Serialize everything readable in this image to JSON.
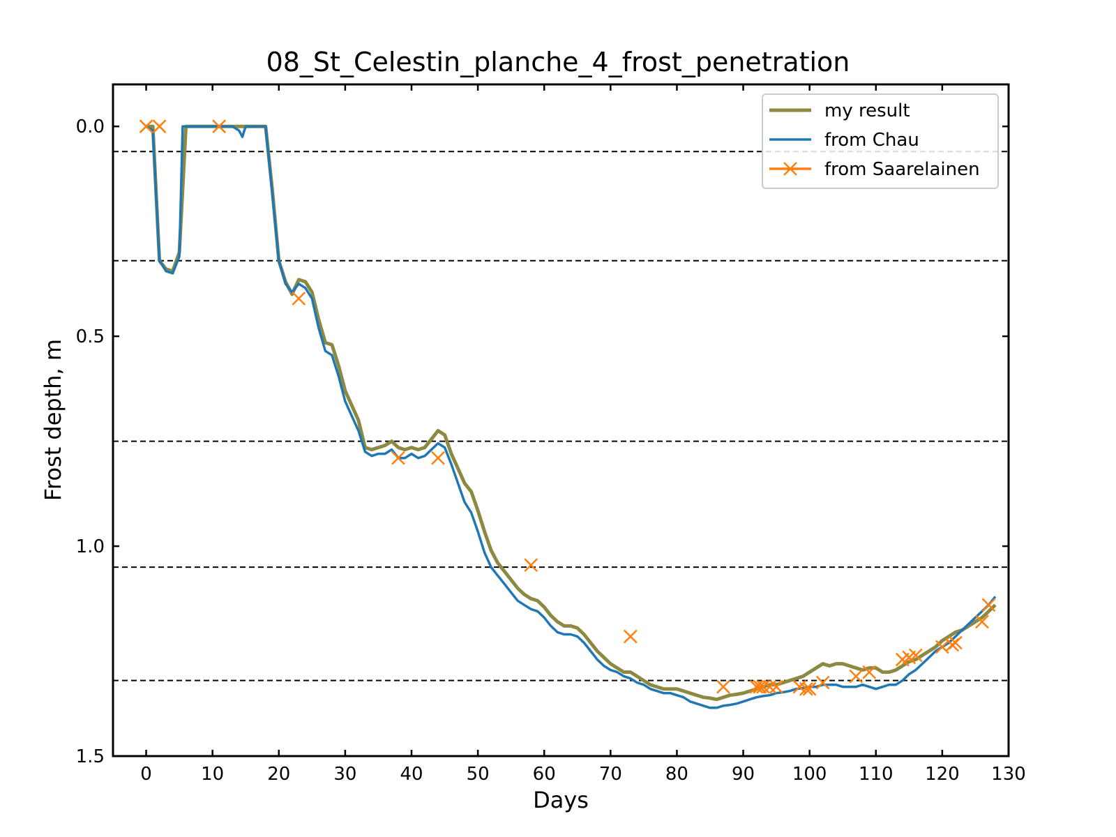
{
  "chart_data": {
    "type": "line",
    "title": "08_St_Celestin_planche_4_frost_penetration",
    "xlabel": "Days",
    "ylabel": "Frost depth, m",
    "xlim": [
      -5,
      130
    ],
    "ylim": [
      1.5,
      -0.1
    ],
    "y_inverted": true,
    "xticks": [
      0,
      10,
      20,
      30,
      40,
      50,
      60,
      70,
      80,
      90,
      100,
      110,
      120,
      130
    ],
    "yticks": [
      0.0,
      0.5,
      1.0,
      1.5
    ],
    "xtick_labels": [
      "0",
      "10",
      "20",
      "30",
      "40",
      "50",
      "60",
      "70",
      "80",
      "90",
      "100",
      "110",
      "120",
      "130"
    ],
    "ytick_labels": [
      "0.0",
      "0.5",
      "1.0",
      "1.5"
    ],
    "layer_boundaries": [
      0.06,
      0.32,
      0.75,
      1.05,
      1.32
    ],
    "legend_position": "upper right",
    "grid": false,
    "series": [
      {
        "name": "my result",
        "color": "#8c8a42",
        "style": "line",
        "x": [
          0,
          1,
          2,
          3,
          4,
          5,
          6,
          7,
          8,
          9,
          10,
          11,
          12,
          13,
          14,
          15,
          16,
          17,
          18,
          19,
          20,
          21,
          22,
          23,
          24,
          25,
          26,
          27,
          28,
          29,
          30,
          31,
          32,
          33,
          34,
          35,
          36,
          37,
          38,
          39,
          40,
          41,
          42,
          43,
          44,
          45,
          46,
          47,
          48,
          49,
          50,
          51,
          52,
          53,
          54,
          55,
          56,
          57,
          58,
          59,
          60,
          61,
          62,
          63,
          64,
          65,
          66,
          67,
          68,
          69,
          70,
          71,
          72,
          73,
          74,
          75,
          76,
          77,
          78,
          79,
          80,
          81,
          82,
          83,
          84,
          85,
          86,
          87,
          88,
          89,
          90,
          91,
          92,
          93,
          94,
          95,
          96,
          97,
          98,
          99,
          100,
          101,
          102,
          103,
          104,
          105,
          106,
          107,
          108,
          109,
          110,
          111,
          112,
          113,
          114,
          115,
          116,
          117,
          118,
          119,
          120,
          121,
          122,
          123,
          124,
          125,
          126,
          127,
          128
        ],
        "y": [
          0.0,
          0.0,
          0.32,
          0.34,
          0.345,
          0.3,
          0.0,
          0.0,
          0.0,
          0.0,
          0.0,
          0.0,
          0.0,
          0.0,
          0.0,
          0.0,
          0.0,
          0.0,
          0.0,
          0.15,
          0.32,
          0.37,
          0.4,
          0.365,
          0.37,
          0.395,
          0.46,
          0.515,
          0.52,
          0.57,
          0.63,
          0.665,
          0.7,
          0.765,
          0.77,
          0.765,
          0.76,
          0.75,
          0.765,
          0.77,
          0.765,
          0.77,
          0.765,
          0.745,
          0.725,
          0.735,
          0.78,
          0.815,
          0.85,
          0.87,
          0.915,
          0.965,
          1.01,
          1.04,
          1.06,
          1.08,
          1.1,
          1.115,
          1.125,
          1.13,
          1.145,
          1.165,
          1.18,
          1.19,
          1.19,
          1.195,
          1.21,
          1.23,
          1.25,
          1.265,
          1.28,
          1.29,
          1.3,
          1.3,
          1.31,
          1.32,
          1.33,
          1.335,
          1.34,
          1.34,
          1.34,
          1.345,
          1.35,
          1.355,
          1.36,
          1.362,
          1.365,
          1.36,
          1.355,
          1.353,
          1.35,
          1.345,
          1.34,
          1.335,
          1.33,
          1.33,
          1.325,
          1.32,
          1.315,
          1.31,
          1.3,
          1.29,
          1.28,
          1.285,
          1.28,
          1.28,
          1.285,
          1.29,
          1.295,
          1.29,
          1.29,
          1.3,
          1.3,
          1.295,
          1.285,
          1.275,
          1.27,
          1.26,
          1.25,
          1.24,
          1.225,
          1.215,
          1.205,
          1.2,
          1.19,
          1.18,
          1.17,
          1.155,
          1.14
        ]
      },
      {
        "name": "from Chau",
        "color": "#1f77b4",
        "style": "line",
        "x": [
          0,
          1,
          2,
          3,
          4,
          5,
          5.5,
          6,
          7,
          8,
          9,
          10,
          11,
          12,
          13,
          14,
          14.5,
          15,
          16,
          17,
          18,
          19,
          20,
          21,
          22,
          23,
          24,
          25,
          26,
          27,
          28,
          29,
          30,
          31,
          32,
          33,
          34,
          35,
          36,
          37,
          38,
          39,
          40,
          41,
          42,
          43,
          44,
          45,
          46,
          47,
          48,
          49,
          50,
          51,
          52,
          53,
          54,
          55,
          56,
          57,
          58,
          59,
          60,
          61,
          62,
          63,
          64,
          65,
          66,
          67,
          68,
          69,
          70,
          71,
          72,
          73,
          74,
          75,
          76,
          77,
          78,
          79,
          80,
          81,
          82,
          83,
          84,
          85,
          86,
          87,
          88,
          89,
          90,
          91,
          92,
          93,
          94,
          95,
          96,
          97,
          98,
          99,
          100,
          101,
          102,
          103,
          104,
          105,
          106,
          107,
          108,
          109,
          110,
          111,
          112,
          113,
          114,
          115,
          116,
          117,
          118,
          119,
          120,
          121,
          122,
          123,
          124,
          125,
          126,
          127,
          128
        ],
        "y": [
          0.0,
          0.01,
          0.32,
          0.345,
          0.35,
          0.31,
          0.0,
          0.0,
          0.0,
          0.0,
          0.0,
          0.0,
          0.0,
          0.0,
          0.0,
          0.01,
          0.025,
          0.0,
          0.0,
          0.0,
          0.0,
          0.16,
          0.32,
          0.375,
          0.395,
          0.375,
          0.385,
          0.41,
          0.48,
          0.535,
          0.545,
          0.595,
          0.655,
          0.69,
          0.725,
          0.775,
          0.785,
          0.78,
          0.78,
          0.77,
          0.79,
          0.79,
          0.78,
          0.79,
          0.785,
          0.77,
          0.755,
          0.765,
          0.805,
          0.85,
          0.895,
          0.92,
          0.965,
          1.015,
          1.05,
          1.07,
          1.09,
          1.11,
          1.13,
          1.14,
          1.15,
          1.155,
          1.17,
          1.19,
          1.205,
          1.21,
          1.21,
          1.215,
          1.23,
          1.25,
          1.27,
          1.285,
          1.295,
          1.3,
          1.31,
          1.315,
          1.325,
          1.33,
          1.34,
          1.345,
          1.35,
          1.35,
          1.355,
          1.36,
          1.37,
          1.375,
          1.38,
          1.385,
          1.385,
          1.38,
          1.378,
          1.375,
          1.37,
          1.365,
          1.36,
          1.357,
          1.355,
          1.35,
          1.348,
          1.345,
          1.34,
          1.338,
          1.335,
          1.335,
          1.33,
          1.33,
          1.33,
          1.335,
          1.335,
          1.335,
          1.33,
          1.335,
          1.34,
          1.335,
          1.33,
          1.33,
          1.32,
          1.305,
          1.295,
          1.28,
          1.265,
          1.25,
          1.24,
          1.23,
          1.215,
          1.2,
          1.185,
          1.17,
          1.155,
          1.14,
          1.12
        ]
      },
      {
        "name": "from Saarelainen",
        "color": "#ff7f0e",
        "style": "marker-x",
        "x": [
          0,
          2,
          11,
          23,
          38,
          44,
          58,
          73,
          87,
          92,
          92.5,
          93,
          94,
          95,
          98.5,
          99.5,
          100,
          102,
          107,
          109,
          114,
          115,
          116,
          120,
          121.5,
          122,
          126,
          127
        ],
        "y": [
          0.0,
          0.0,
          0.0,
          0.41,
          0.79,
          0.79,
          1.045,
          1.215,
          1.335,
          1.335,
          1.335,
          1.335,
          1.335,
          1.335,
          1.335,
          1.34,
          1.34,
          1.325,
          1.31,
          1.3,
          1.27,
          1.265,
          1.26,
          1.24,
          1.235,
          1.23,
          1.18,
          1.14
        ]
      }
    ]
  }
}
